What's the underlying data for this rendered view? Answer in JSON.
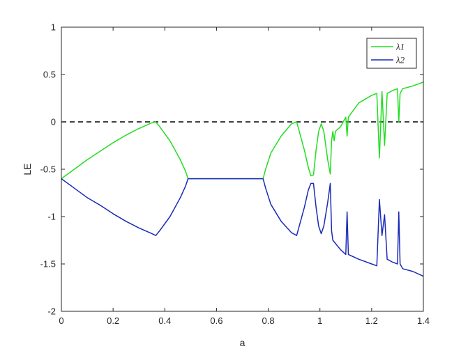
{
  "chart_data": {
    "type": "line",
    "title": "",
    "xlabel": "a",
    "ylabel": "LE",
    "xlim": [
      0,
      1.4
    ],
    "ylim": [
      -2,
      1
    ],
    "xticks": [
      0,
      0.2,
      0.4,
      0.6,
      0.8,
      1,
      1.2,
      1.4
    ],
    "xtick_labels": [
      "0",
      "0.2",
      "0.4",
      "0.6",
      "0.8",
      "1",
      "1.2",
      "1.4"
    ],
    "yticks": [
      -2,
      -1.5,
      -1,
      -0.5,
      0,
      0.5,
      1
    ],
    "ytick_labels": [
      "-2",
      "-1.5",
      "-1",
      "-0.5",
      "0",
      "0.5",
      "1"
    ],
    "grid": false,
    "legend_position": "top-right",
    "reference_line": {
      "y": 0,
      "style": "dashed",
      "color": "#000000"
    },
    "series": [
      {
        "name": "λ1",
        "color": "#22dd22",
        "x": [
          0,
          0.05,
          0.1,
          0.15,
          0.2,
          0.25,
          0.3,
          0.35,
          0.365,
          0.38,
          0.42,
          0.46,
          0.48,
          0.49,
          0.5,
          0.6,
          0.7,
          0.78,
          0.79,
          0.81,
          0.85,
          0.89,
          0.91,
          0.92,
          0.94,
          0.955,
          0.965,
          0.975,
          0.985,
          0.995,
          1.005,
          1.015,
          1.03,
          1.04,
          1.045,
          1.05,
          1.055,
          1.06,
          1.08,
          1.1,
          1.105,
          1.11,
          1.15,
          1.2,
          1.22,
          1.23,
          1.24,
          1.25,
          1.26,
          1.28,
          1.3,
          1.305,
          1.31,
          1.32,
          1.36,
          1.4
        ],
        "y": [
          -0.6,
          -0.5,
          -0.4,
          -0.31,
          -0.22,
          -0.14,
          -0.07,
          -0.01,
          0,
          -0.05,
          -0.2,
          -0.4,
          -0.52,
          -0.6,
          -0.6,
          -0.6,
          -0.6,
          -0.6,
          -0.5,
          -0.33,
          -0.15,
          -0.02,
          0,
          -0.1,
          -0.3,
          -0.48,
          -0.57,
          -0.56,
          -0.3,
          -0.1,
          -0.02,
          -0.1,
          -0.4,
          -0.55,
          -0.2,
          -0.1,
          -0.2,
          -0.1,
          -0.05,
          0.05,
          -0.15,
          0.05,
          0.2,
          0.28,
          0.3,
          -0.38,
          0.32,
          -0.25,
          0.3,
          0.33,
          0.35,
          0.0,
          0.3,
          0.35,
          0.38,
          0.42
        ]
      },
      {
        "name": "λ2",
        "color": "#1a2ab8",
        "x": [
          0,
          0.05,
          0.1,
          0.15,
          0.2,
          0.25,
          0.3,
          0.35,
          0.365,
          0.38,
          0.42,
          0.46,
          0.48,
          0.49,
          0.5,
          0.6,
          0.7,
          0.78,
          0.79,
          0.81,
          0.85,
          0.89,
          0.91,
          0.92,
          0.94,
          0.955,
          0.965,
          0.975,
          0.985,
          0.995,
          1.005,
          1.015,
          1.03,
          1.04,
          1.045,
          1.05,
          1.08,
          1.1,
          1.105,
          1.11,
          1.15,
          1.2,
          1.22,
          1.23,
          1.24,
          1.25,
          1.26,
          1.28,
          1.3,
          1.305,
          1.31,
          1.32,
          1.36,
          1.4
        ],
        "y": [
          -0.6,
          -0.7,
          -0.8,
          -0.88,
          -0.97,
          -1.05,
          -1.12,
          -1.18,
          -1.2,
          -1.15,
          -1.0,
          -0.8,
          -0.68,
          -0.6,
          -0.6,
          -0.6,
          -0.6,
          -0.6,
          -0.7,
          -0.87,
          -1.05,
          -1.17,
          -1.2,
          -1.1,
          -0.9,
          -0.72,
          -0.65,
          -0.65,
          -0.9,
          -1.1,
          -1.18,
          -1.1,
          -0.85,
          -0.65,
          -1.15,
          -1.25,
          -1.35,
          -1.4,
          -0.95,
          -1.4,
          -1.45,
          -1.5,
          -1.52,
          -0.82,
          -1.2,
          -0.98,
          -1.45,
          -1.48,
          -1.5,
          -0.95,
          -1.5,
          -1.55,
          -1.58,
          -1.63
        ]
      }
    ]
  }
}
